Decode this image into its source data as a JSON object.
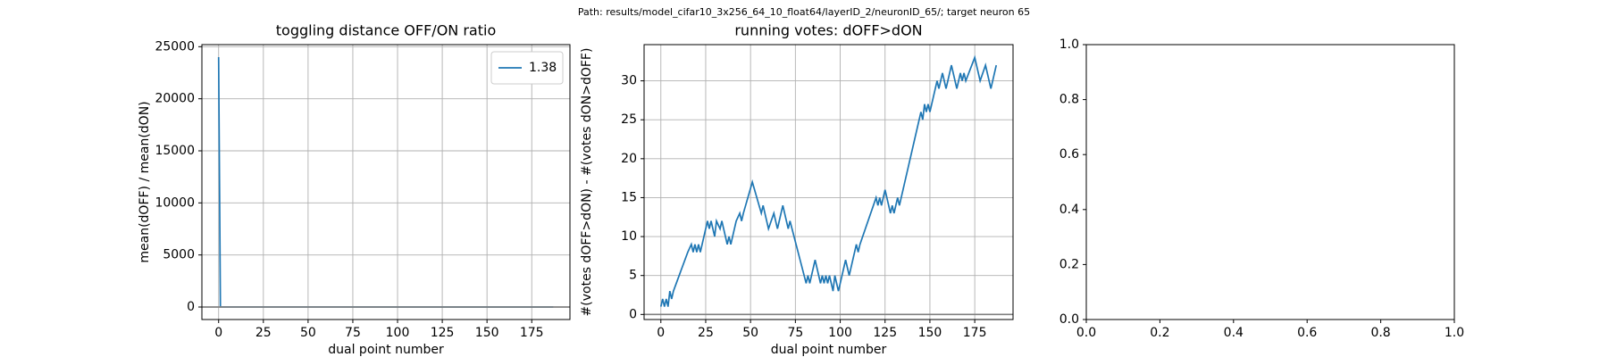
{
  "title": "Path: results/model_cifar10_3x256_64_10_float64/layerID_2/neuronID_65/; target neuron 65",
  "chart_data": [
    {
      "type": "line",
      "title": "toggling distance OFF/ON ratio",
      "x_label": "dual point number",
      "y_label": "mean(dOFF) / mean(dON)",
      "x": [
        0,
        1,
        187
      ],
      "series": [
        {
          "name": "1.38",
          "color": "#1f77b4",
          "values": [
            24000,
            5,
            1.38
          ]
        }
      ],
      "axhline": 0,
      "axhline_color": "#808080",
      "xlim": [
        -9.35,
        196.35
      ],
      "xticks": [
        0,
        25,
        50,
        75,
        100,
        125,
        150,
        175
      ],
      "ylim": [
        -1200,
        25200
      ],
      "yticks": [
        0,
        5000,
        10000,
        15000,
        20000,
        25000
      ],
      "grid": true,
      "legend": "upper right"
    },
    {
      "type": "line",
      "title": "running votes: dOFF>dON",
      "x_label": "dual point number",
      "y_label": "#(votes dOFF>dON) - #(votes dON>dOFF)",
      "x": [
        0,
        1,
        2,
        3,
        4,
        5,
        6,
        7,
        15,
        17,
        18,
        19,
        20,
        21,
        22,
        26,
        27,
        28,
        30,
        31,
        33,
        34,
        36,
        37,
        38,
        39,
        42,
        44,
        45,
        46,
        51,
        56,
        57,
        60,
        63,
        65,
        68,
        71,
        72,
        81,
        82,
        83,
        86,
        89,
        90,
        91,
        92,
        93,
        94,
        96,
        97,
        99,
        100,
        103,
        105,
        109,
        110,
        111,
        114,
        120,
        121,
        122,
        123,
        125,
        128,
        129,
        130,
        132,
        133,
        145,
        146,
        147,
        148,
        149,
        150,
        154,
        155,
        157,
        159,
        162,
        165,
        167,
        168,
        169,
        170,
        175,
        178,
        181,
        184,
        187
      ],
      "series": [
        {
          "color": "#1f77b4",
          "values": [
            1,
            2,
            1,
            2,
            1,
            3,
            2,
            3,
            8,
            9,
            8,
            9,
            8,
            9,
            8,
            12,
            11,
            12,
            10,
            12,
            11,
            12,
            10,
            9,
            10,
            9,
            12,
            13,
            12,
            13,
            17,
            13,
            14,
            11,
            13,
            11,
            14,
            11,
            12,
            4,
            5,
            4,
            7,
            4,
            5,
            4,
            5,
            4,
            5,
            3,
            5,
            3,
            4,
            7,
            5,
            9,
            8,
            9,
            11,
            15,
            14,
            15,
            14,
            16,
            13,
            14,
            13,
            15,
            14,
            26,
            25,
            27,
            26,
            27,
            26,
            30,
            29,
            31,
            29,
            32,
            29,
            31,
            30,
            31,
            30,
            33,
            30,
            32,
            29,
            32
          ]
        }
      ],
      "axhline": 0,
      "axhline_color": "#808080",
      "xlim": [
        -9.35,
        196.35
      ],
      "xticks": [
        0,
        25,
        50,
        75,
        100,
        125,
        150,
        175
      ],
      "ylim": [
        -0.65,
        34.65
      ],
      "yticks": [
        0,
        5,
        10,
        15,
        20,
        25,
        30
      ],
      "grid": true
    },
    {
      "type": "empty",
      "xlim": [
        0,
        1
      ],
      "xticks": [
        {
          "value": 0,
          "label": "0.0"
        },
        {
          "value": 0.2,
          "label": "0.2"
        },
        {
          "value": 0.4,
          "label": "0.4"
        },
        {
          "value": 0.6,
          "label": "0.6"
        },
        {
          "value": 0.8,
          "label": "0.8"
        },
        {
          "value": 1,
          "label": "1.0"
        }
      ],
      "ylim": [
        0,
        1
      ],
      "yticks": [
        {
          "value": 0,
          "label": "0.0"
        },
        {
          "value": 0.2,
          "label": "0.2"
        },
        {
          "value": 0.4,
          "label": "0.4"
        },
        {
          "value": 0.6,
          "label": "0.6"
        },
        {
          "value": 0.8,
          "label": "0.8"
        },
        {
          "value": 1,
          "label": "1.0"
        }
      ],
      "grid": false
    }
  ]
}
